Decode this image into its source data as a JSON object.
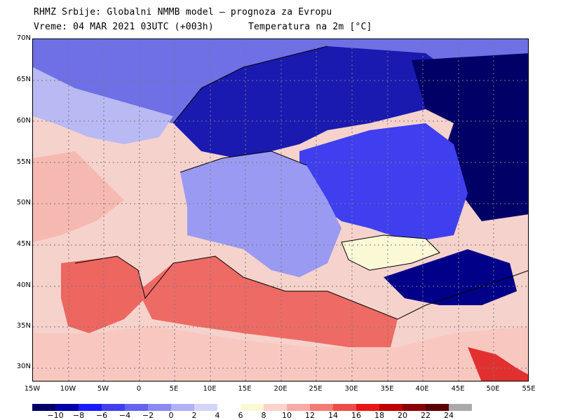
{
  "header": {
    "line1": "RHMZ Srbije: Globalni NMMB model — prognoza za Evropu",
    "line2_left": "Vreme: 04 MAR 2021 03UTC (+003h)",
    "line2_right": "Temperatura na 2m [°C]"
  },
  "axes": {
    "latitude_labels": [
      "70N",
      "65N",
      "60N",
      "55N",
      "50N",
      "45N",
      "40N",
      "35N",
      "30N"
    ],
    "longitude_labels": [
      "15W",
      "10W",
      "5W",
      "0",
      "5E",
      "10E",
      "15E",
      "20E",
      "25E",
      "30E",
      "35E",
      "40E",
      "45E",
      "50E",
      "55E"
    ]
  },
  "legend": {
    "colors": [
      "#000066",
      "#0000aa",
      "#1a1aff",
      "#3f3ff0",
      "#6464ee",
      "#8a8af0",
      "#b0b0f6",
      "#d4d4fa",
      "#ffffff",
      "#fbf8d6",
      "#fcd2cc",
      "#f9aaa4",
      "#f37b76",
      "#ee4c48",
      "#ea1414",
      "#c00000",
      "#880000",
      "#5a0000",
      "#aaaaaa"
    ],
    "labels": [
      "−10",
      "−8",
      "−6",
      "−4",
      "−2",
      "0",
      "2",
      "4",
      "6",
      "8",
      "10",
      "12",
      "14",
      "16",
      "18",
      "20",
      "22",
      "24"
    ]
  },
  "map": {
    "sea_color": "#f6d2cc",
    "regions": [
      {
        "name": "north-atlantic-cold",
        "color": "#6f6fe6"
      },
      {
        "name": "atlantic-mid",
        "color": "#b9b9f4"
      },
      {
        "name": "atlantic-warm",
        "color": "#f6b9b2"
      },
      {
        "name": "iberia",
        "color": "#ee6660"
      },
      {
        "name": "mediterranean",
        "color": "#ee6a64"
      },
      {
        "name": "north-africa",
        "color": "#f8c8c0"
      },
      {
        "name": "scandinavia",
        "color": "#1a1ab0"
      },
      {
        "name": "russia",
        "color": "#000066"
      },
      {
        "name": "eastern-europe",
        "color": "#3f3ff0"
      },
      {
        "name": "central-europe",
        "color": "#9a9af2"
      },
      {
        "name": "black-sea",
        "color": "#fbf8d6"
      },
      {
        "name": "anatolia-cold",
        "color": "#000088"
      }
    ]
  }
}
